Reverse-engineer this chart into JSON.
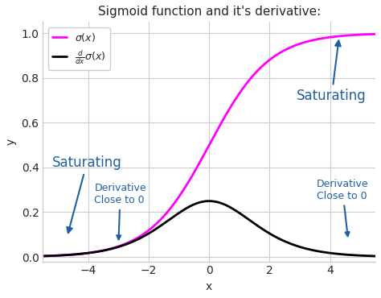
{
  "title": "Sigmoid function and it's derivative:",
  "xlabel": "x",
  "ylabel": "y",
  "xlim": [
    -5.5,
    5.5
  ],
  "ylim": [
    -0.02,
    1.05
  ],
  "sigmoid_color": "#ff00ff",
  "derivative_color": "#000000",
  "annotation_color": "#2060a0",
  "legend_label_sigmoid": "$\\sigma(x)$",
  "legend_label_derivative": "$\\frac{d}{dx}\\sigma(x)$",
  "figsize": [
    4.74,
    3.7
  ],
  "dpi": 100,
  "title_fontsize": 11,
  "axis_label_fontsize": 10,
  "legend_fontsize": 9,
  "ann_fontsize_large": 12,
  "ann_fontsize_small": 9
}
